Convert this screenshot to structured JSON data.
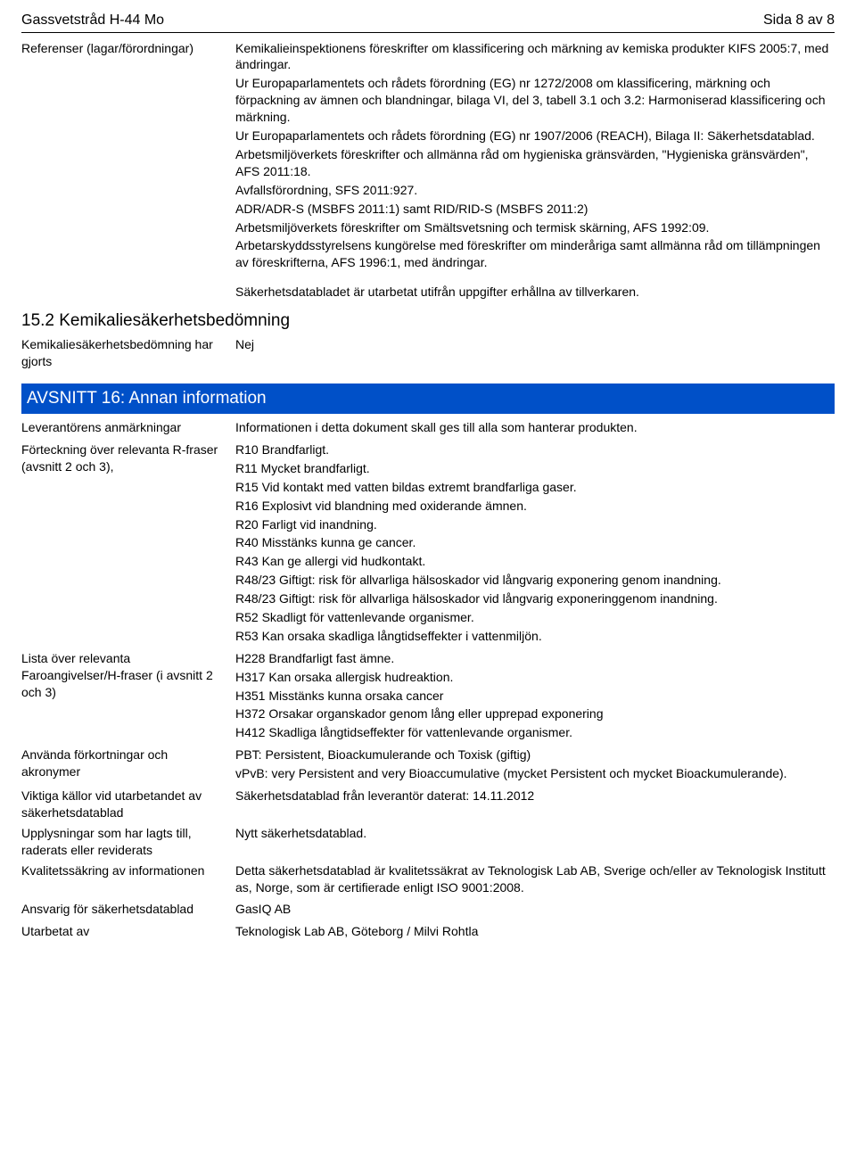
{
  "header": {
    "product_name": "Gassvetstråd H-44 Mo",
    "page_indicator": "Sida 8 av 8"
  },
  "references": {
    "label": "Referenser (lagar/förordningar)",
    "paragraphs": [
      "Kemikalieinspektionens föreskrifter om klassificering och märkning av kemiska produkter KIFS 2005:7, med ändringar.",
      "Ur Europaparlamentets och rådets förordning (EG) nr 1272/2008 om klassificering, märkning och förpackning av ämnen och blandningar, bilaga VI, del 3, tabell 3.1 och 3.2: Harmoniserad klassificering och märkning.",
      "Ur Europaparlamentets och rådets förordning (EG) nr 1907/2006 (REACH), Bilaga II: Säkerhetsdatablad.",
      "Arbetsmiljöverkets föreskrifter och allmänna råd om hygieniska gränsvärden, \"Hygieniska gränsvärden\", AFS 2011:18.",
      "Avfallsförordning, SFS 2011:927.",
      "ADR/ADR-S (MSBFS 2011:1) samt RID/RID-S (MSBFS 2011:2)",
      "Arbetsmiljöverkets föreskrifter om Smältsvetsning och termisk skärning, AFS 1992:09.",
      "Arbetarskyddsstyrelsens kungörelse med föreskrifter om minderåriga samt allmänna råd om tillämpningen av föreskrifterna, AFS 1996:1, med ändringar."
    ],
    "footer_note": "Säkerhetsdatabladet är utarbetat utifrån uppgifter erhållna av tillverkaren."
  },
  "section15_2": {
    "heading": "15.2 Kemikaliesäkerhetsbedömning",
    "row": {
      "label": "Kemikaliesäkerhetsbedömning har gjorts",
      "value": "Nej"
    }
  },
  "section16": {
    "title": "AVSNITT 16: Annan information",
    "rows": [
      {
        "label": "Leverantörens anmärkningar",
        "values": [
          "Informationen i detta dokument skall ges till alla som hanterar produkten."
        ]
      },
      {
        "label": "Förteckning över relevanta R-fraser (avsnitt 2 och 3),",
        "values": [
          "R10 Brandfarligt.",
          "R11 Mycket brandfarligt.",
          "R15 Vid kontakt med vatten bildas extremt brandfarliga gaser.",
          "R16 Explosivt vid blandning med oxiderande ämnen.",
          "R20 Farligt vid inandning.",
          "R40 Misstänks kunna ge cancer.",
          "R43 Kan ge allergi vid hudkontakt.",
          "R48/23 Giftigt: risk för allvarliga hälsoskador vid långvarig exponering genom inandning.",
          "R48/23 Giftigt: risk för allvarliga hälsoskador vid långvarig exponeringgenom inandning.",
          "R52 Skadligt för vattenlevande organismer.",
          "R53 Kan orsaka skadliga långtidseffekter i vattenmiljön."
        ]
      },
      {
        "label": "Lista över relevanta Faroangivelser/H-fraser (i avsnitt 2 och 3)",
        "values": [
          "H228 Brandfarligt fast ämne.",
          "H317 Kan orsaka allergisk hudreaktion.",
          "H351 Misstänks kunna orsaka cancer",
          "H372 Orsakar organskador genom lång eller upprepad exponering",
          "H412 Skadliga långtidseffekter för vattenlevande organismer."
        ]
      },
      {
        "label": "Använda förkortningar och akronymer",
        "values": [
          "PBT: Persistent, Bioackumulerande och Toxisk (giftig)",
          "vPvB: very Persistent and very Bioaccumulative (mycket Persistent och mycket Bioackumulerande)."
        ]
      },
      {
        "label": "Viktiga källor vid utarbetandet av säkerhetsdatablad",
        "values": [
          "Säkerhetsdatablad från leverantör daterat: 14.11.2012"
        ]
      },
      {
        "label": "Upplysningar som har lagts till, raderats eller reviderats",
        "values": [
          "Nytt säkerhetsdatablad."
        ]
      },
      {
        "label": "Kvalitetssäkring av informationen",
        "values": [
          "Detta säkerhetsdatablad är kvalitetssäkrat av Teknologisk Lab AB, Sverige och/eller av Teknologisk Institutt as, Norge, som är certifierade enligt ISO 9001:2008."
        ]
      },
      {
        "label": "Ansvarig för säkerhetsdatablad",
        "values": [
          "GasIQ AB"
        ]
      },
      {
        "label": "Utarbetat av",
        "values": [
          "Teknologisk Lab AB, Göteborg / Milvi Rohtla"
        ]
      }
    ]
  },
  "colors": {
    "section_bar_bg": "#0050c8",
    "section_bar_fg": "#ffffff",
    "text": "#000000",
    "rule": "#000000"
  }
}
